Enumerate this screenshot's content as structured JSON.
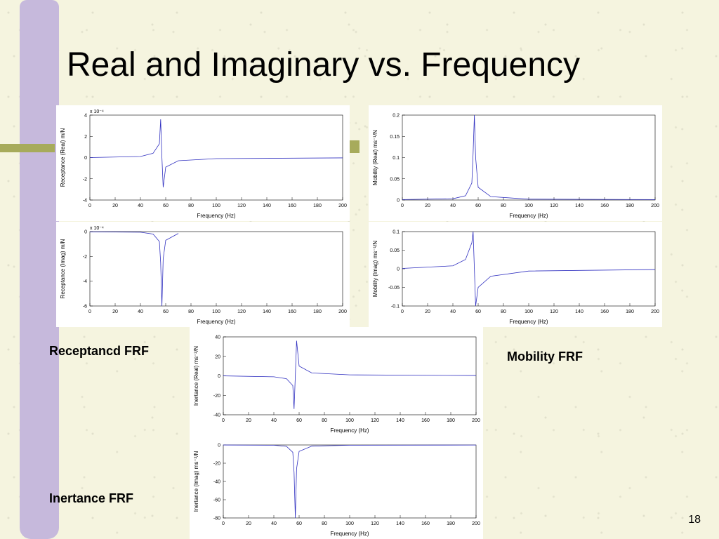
{
  "slide": {
    "title": "Real and Imaginary vs. Frequency",
    "page_number": "18",
    "bg_color": "#f5f4df",
    "purple_stripe_color": "#c6b9dc",
    "olive_color": "#a7ab5b"
  },
  "labels": {
    "receptance": "Receptancd FRF",
    "mobility": "Mobility FRF",
    "inertance": "Inertance FRF"
  },
  "common_axis": {
    "xlabel": "Frequency (Hz)",
    "xlim": [
      0,
      200
    ],
    "xticks": [
      0,
      20,
      40,
      60,
      80,
      100,
      120,
      140,
      160,
      180,
      200
    ],
    "line_color": "#3030c0",
    "axis_color": "#000000",
    "tick_fontsize": 7,
    "label_fontsize": 8,
    "resonance_freq": 57
  },
  "charts": {
    "recept_real": {
      "ylabel": "Receptance (Real) m/N",
      "ylim": [
        -4,
        4
      ],
      "yticks": [
        -4,
        -2,
        0,
        2,
        4
      ],
      "exp_label": "x 10⁻⁴",
      "curve": [
        [
          0,
          0
        ],
        [
          40,
          0.1
        ],
        [
          50,
          0.4
        ],
        [
          55,
          1.3
        ],
        [
          56,
          3.6
        ],
        [
          57,
          0
        ],
        [
          58,
          -2.8
        ],
        [
          60,
          -0.9
        ],
        [
          70,
          -0.3
        ],
        [
          100,
          -0.1
        ],
        [
          200,
          -0.03
        ]
      ]
    },
    "recept_imag": {
      "ylabel": "Receptance (Imag) m/N",
      "ylim": [
        -6,
        0
      ],
      "yticks": [
        -6,
        -4,
        -2,
        0
      ],
      "exp_label": "x 10⁻⁴",
      "curve": [
        [
          0,
          -0.02
        ],
        [
          40,
          -0.05
        ],
        [
          50,
          -0.2
        ],
        [
          55,
          -0.8
        ],
        [
          56,
          -2.5
        ],
        [
          57,
          -6
        ],
        [
          58,
          -2.2
        ],
        [
          60,
          -0.7
        ],
        [
          70,
          -0.15
        ]
      ]
    },
    "mob_real": {
      "ylabel": "Mobility (Real) ms⁻¹/N",
      "ylim": [
        0,
        0.2
      ],
      "yticks": [
        0,
        0.05,
        0.1,
        0.15,
        0.2
      ],
      "curve": [
        [
          0,
          0.001
        ],
        [
          40,
          0.003
        ],
        [
          50,
          0.01
        ],
        [
          55,
          0.04
        ],
        [
          56,
          0.11
        ],
        [
          57,
          0.2
        ],
        [
          58,
          0.1
        ],
        [
          60,
          0.03
        ],
        [
          70,
          0.008
        ],
        [
          100,
          0.002
        ],
        [
          200,
          0.001
        ]
      ]
    },
    "mob_imag": {
      "ylabel": "Mobility (Imag) ms⁻¹/N",
      "ylim": [
        -0.1,
        0.1
      ],
      "yticks": [
        -0.1,
        -0.05,
        0,
        0.05,
        0.1
      ],
      "curve": [
        [
          0,
          0.001
        ],
        [
          40,
          0.008
        ],
        [
          50,
          0.025
        ],
        [
          55,
          0.07
        ],
        [
          56,
          0.1
        ],
        [
          57,
          0
        ],
        [
          58,
          -0.1
        ],
        [
          60,
          -0.05
        ],
        [
          70,
          -0.02
        ],
        [
          100,
          -0.006
        ],
        [
          200,
          -0.002
        ]
      ]
    },
    "inert_real": {
      "ylabel": "Inertance (Real) ms⁻²/N",
      "ylim": [
        -40,
        40
      ],
      "yticks": [
        -40,
        -20,
        0,
        20,
        40
      ],
      "curve": [
        [
          0,
          -0.05
        ],
        [
          40,
          -1
        ],
        [
          50,
          -3
        ],
        [
          55,
          -10
        ],
        [
          56,
          -34
        ],
        [
          57,
          0
        ],
        [
          58,
          36
        ],
        [
          60,
          10
        ],
        [
          70,
          3
        ],
        [
          100,
          1
        ],
        [
          200,
          0.3
        ]
      ]
    },
    "inert_imag": {
      "ylabel": "Inertance (Imag) ms⁻²/N",
      "ylim": [
        -80,
        0
      ],
      "yticks": [
        -80,
        -60,
        -40,
        -20,
        0
      ],
      "curve": [
        [
          0,
          -0.05
        ],
        [
          40,
          -0.3
        ],
        [
          50,
          -1.5
        ],
        [
          55,
          -8
        ],
        [
          56,
          -30
        ],
        [
          57,
          -80
        ],
        [
          58,
          -26
        ],
        [
          60,
          -7
        ],
        [
          70,
          -1.3
        ],
        [
          100,
          -0.3
        ],
        [
          200,
          -0.1
        ]
      ]
    }
  }
}
